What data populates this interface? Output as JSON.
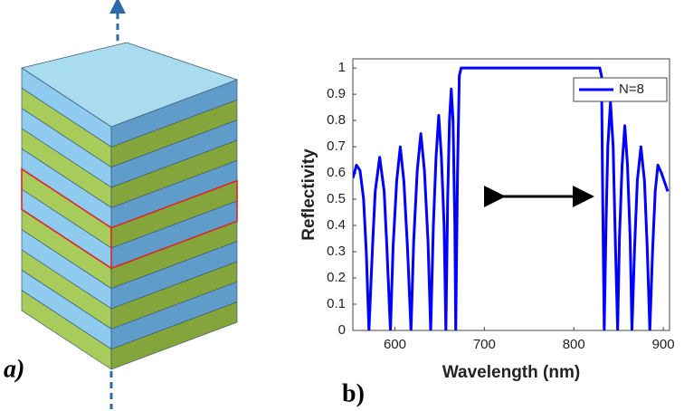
{
  "panel_labels": [
    "a)",
    "b)"
  ],
  "chart_data": {
    "type": "line",
    "xlabel": "Wavelength (nm)",
    "ylabel": "Reflectivity",
    "xlim": [
      553,
      907
    ],
    "ylim": [
      0,
      1.035
    ],
    "xticks": [
      600,
      700,
      800,
      900
    ],
    "yticks": [
      0,
      0.1,
      0.2,
      0.3,
      0.4,
      0.5,
      0.6,
      0.7,
      0.8,
      0.9,
      1
    ],
    "legend": "upper right",
    "x": [
      553,
      557,
      561,
      565,
      568,
      571,
      575,
      578,
      583,
      588,
      591,
      595,
      598,
      602,
      606,
      610,
      614,
      618,
      621,
      625,
      629,
      633,
      637,
      640,
      643,
      646,
      649,
      652,
      655,
      657,
      659,
      661,
      663,
      665,
      667,
      668,
      670,
      672,
      674,
      700,
      750,
      800,
      829,
      831,
      832,
      834,
      836,
      838,
      841,
      844,
      846,
      849,
      851,
      854,
      857,
      860,
      863,
      865,
      868,
      871,
      875,
      879,
      882,
      885,
      888,
      891,
      894,
      898,
      902,
      905
    ],
    "series": [
      {
        "name": "N=8",
        "color": "#0000ff",
        "values": [
          0.58,
          0.63,
          0.61,
          0.5,
          0.3,
          0,
          0.32,
          0.53,
          0.66,
          0.53,
          0.32,
          0,
          0.32,
          0.57,
          0.7,
          0.57,
          0.32,
          0,
          0.34,
          0.61,
          0.75,
          0.61,
          0.34,
          0,
          0.4,
          0.66,
          0.82,
          0.66,
          0.4,
          0,
          0.5,
          0.8,
          0.92,
          0.8,
          0.4,
          0,
          0.6,
          0.97,
          1,
          1,
          1,
          1,
          1,
          0.97,
          0.6,
          0,
          0.4,
          0.7,
          0.87,
          0.7,
          0.4,
          0,
          0.35,
          0.63,
          0.78,
          0.63,
          0.35,
          0,
          0.32,
          0.57,
          0.7,
          0.57,
          0.32,
          0,
          0.3,
          0.53,
          0.63,
          0.6,
          0.56,
          0.53
        ]
      }
    ]
  }
}
